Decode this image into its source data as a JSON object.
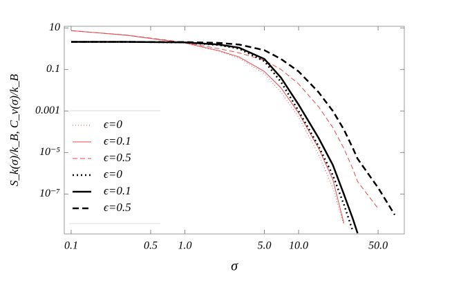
{
  "chart_data": {
    "type": "line",
    "x_label": "σ",
    "y_label": "S_k(σ)/k_B,  C_v(σ)/k_B",
    "log_x": true,
    "log_y": true,
    "legend": "lower left",
    "x": [
      0.1,
      0.3,
      1,
      2,
      3,
      5,
      7,
      10,
      15,
      20,
      25,
      30,
      33,
      50,
      70
    ],
    "xlim": [
      0.087,
      85
    ],
    "ylim": [
      1.2e-09,
      12
    ],
    "xticks": [
      0.1,
      0.5,
      {
        "value": 1,
        "label": "1.0"
      },
      {
        "value": 5,
        "label": "5.0"
      },
      {
        "value": 10,
        "label": "10.0"
      },
      {
        "value": 50,
        "label": "50.0"
      }
    ],
    "yticks": [
      10,
      0.1,
      0.001,
      {
        "value": 1e-05,
        "label": "10⁻⁵"
      },
      {
        "value": 1e-07,
        "label": "10⁻⁷"
      }
    ],
    "series": [
      {
        "name": "ϵ=0",
        "color": "#e8474c",
        "style": "dotted",
        "width": 1,
        "values": [
          7.4,
          4.5,
          1.86,
          0.76,
          0.35,
          0.063,
          0.008,
          0.0005,
          8e-06,
          2e-07,
          3.2e-09,
          null,
          null,
          null,
          null
        ]
      },
      {
        "name": "ϵ=0.1",
        "color": "#e8474c",
        "style": "solid",
        "width": 1,
        "values": [
          7.4,
          4.5,
          1.9,
          0.8,
          0.4,
          0.08,
          0.013,
          0.0008,
          1.6e-05,
          5e-07,
          4e-09,
          null,
          null,
          null,
          null
        ]
      },
      {
        "name": "ϵ=0.5",
        "color": "#e8474c",
        "style": "dashed",
        "width": 1,
        "values": [
          7.4,
          4.6,
          2.0,
          1.0,
          0.63,
          0.28,
          0.1,
          0.02,
          0.0016,
          0.00016,
          1.6e-05,
          1.6e-06,
          4e-07,
          2e-08,
          null
        ]
      },
      {
        "name": "ϵ=0",
        "color": "#000000",
        "style": "dotted",
        "width": 2.5,
        "values": [
          2.14,
          2.14,
          2.0,
          1.5,
          1.0,
          0.25,
          0.025,
          0.001,
          2e-05,
          8e-07,
          3.2e-08,
          1.6e-09,
          null,
          null,
          null
        ]
      },
      {
        "name": "ϵ=0.1",
        "color": "#000000",
        "style": "solid",
        "width": 2.5,
        "values": [
          2.14,
          2.14,
          2.0,
          1.58,
          1.12,
          0.32,
          0.04,
          0.002,
          5e-05,
          2.5e-06,
          1e-07,
          6.3e-09,
          1.3e-09,
          null,
          null
        ]
      },
      {
        "name": "ϵ=0.5",
        "color": "#000000",
        "style": "dashed",
        "width": 2.5,
        "values": [
          2.14,
          2.14,
          2.09,
          1.9,
          1.58,
          0.85,
          0.32,
          0.08,
          0.008,
          0.001,
          0.00013,
          1.6e-05,
          5e-06,
          2e-07,
          1e-08
        ]
      }
    ]
  }
}
